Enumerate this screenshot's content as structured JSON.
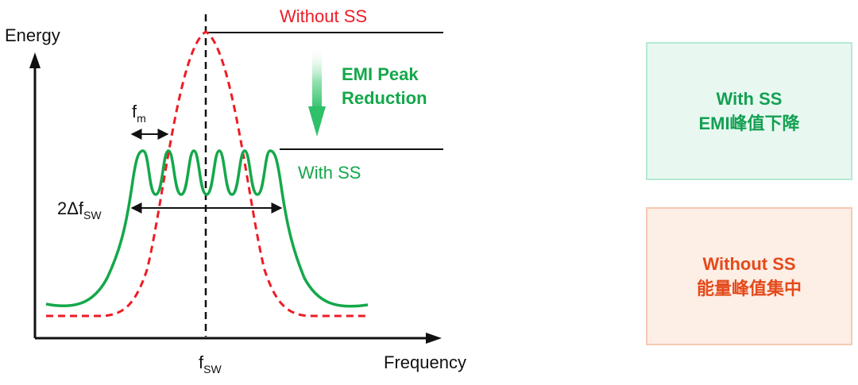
{
  "diagram": {
    "y_axis_label": "Energy",
    "x_axis_label": "Frequency",
    "without_ss_label": "Without SS",
    "with_ss_label": "With SS",
    "reduction_label_line1": "EMI Peak",
    "reduction_label_line2": "Reduction",
    "fm_label": {
      "main": "f",
      "sub": "m"
    },
    "delta_label": {
      "main": "2Δf",
      "sub": "SW"
    },
    "fsw_label": {
      "main": "f",
      "sub": "SW"
    },
    "colors": {
      "without_ss": "#ee1c25",
      "with_ss": "#14a84a",
      "axis": "#111111"
    }
  },
  "side_boxes": {
    "with_ss": {
      "line1": "With SS",
      "line2": "EMI峰值下降"
    },
    "without_ss": {
      "line1": "Without SS",
      "line2": "能量峰值集中"
    }
  }
}
